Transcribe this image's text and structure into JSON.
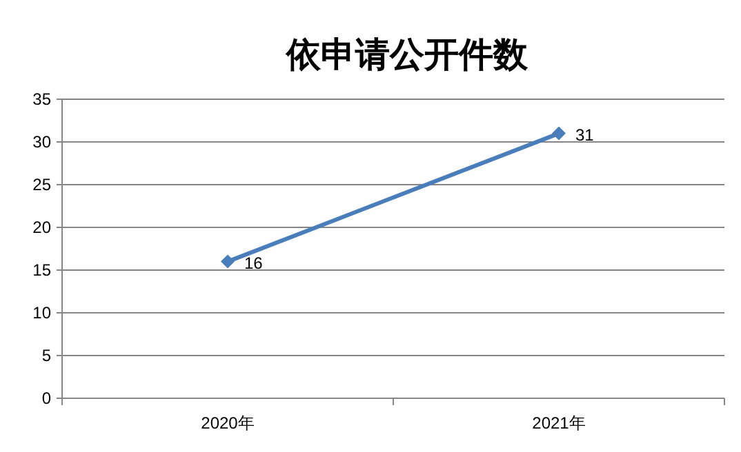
{
  "chart_data": {
    "type": "line",
    "title": "依申请公开件数",
    "categories": [
      "2020年",
      "2021年"
    ],
    "series": [
      {
        "color": "#4a7ebb",
        "values": [
          16,
          31
        ]
      }
    ],
    "ylim": [
      0,
      35
    ],
    "yticks": [
      0,
      5,
      10,
      15,
      20,
      25,
      30,
      35
    ],
    "grid": "y",
    "marker": "diamond",
    "line_style": "solid",
    "data_labels": true
  }
}
